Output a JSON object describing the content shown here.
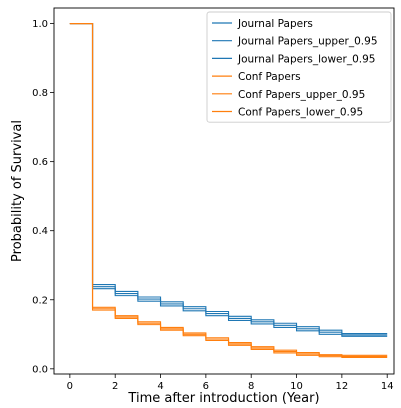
{
  "chart_data": {
    "type": "line",
    "step": "post",
    "xlabel": "Time after introduction (Year)",
    "ylabel": "Probability of Survival",
    "xlim": [
      -0.7,
      14.3
    ],
    "ylim": [
      -0.015,
      1.045
    ],
    "xticks": [
      0,
      2,
      4,
      6,
      8,
      10,
      12,
      14
    ],
    "yticks": [
      0.0,
      0.2,
      0.4,
      0.6,
      0.8,
      1.0
    ],
    "xtick_labels": [
      "0",
      "2",
      "4",
      "6",
      "8",
      "10",
      "12",
      "14"
    ],
    "ytick_labels": [
      "0.0",
      "0.2",
      "0.4",
      "0.6",
      "0.8",
      "1.0"
    ],
    "grid": false,
    "legend_position": "top-right",
    "x": [
      0,
      1,
      2,
      3,
      4,
      5,
      6,
      7,
      8,
      9,
      10,
      11,
      12,
      14
    ],
    "series": [
      {
        "name": "Journal Papers",
        "color": "#1f77b4",
        "values": [
          1.0,
          0.238,
          0.218,
          0.202,
          0.188,
          0.174,
          0.16,
          0.146,
          0.136,
          0.126,
          0.116,
          0.106,
          0.098,
          0.098
        ]
      },
      {
        "name": "Journal Papers_upper_0.95",
        "color": "#1f77b4",
        "values": [
          1.0,
          0.244,
          0.224,
          0.208,
          0.194,
          0.18,
          0.166,
          0.152,
          0.142,
          0.132,
          0.122,
          0.112,
          0.102,
          0.102
        ]
      },
      {
        "name": "Journal Papers_lower_0.95",
        "color": "#1f77b4",
        "values": [
          1.0,
          0.232,
          0.212,
          0.196,
          0.182,
          0.168,
          0.154,
          0.14,
          0.13,
          0.12,
          0.11,
          0.1,
          0.094,
          0.094
        ]
      },
      {
        "name": "Conf Papers",
        "color": "#ff7f0e",
        "values": [
          1.0,
          0.174,
          0.15,
          0.132,
          0.116,
          0.1,
          0.086,
          0.072,
          0.06,
          0.05,
          0.043,
          0.038,
          0.036,
          0.036
        ]
      },
      {
        "name": "Conf Papers_upper_0.95",
        "color": "#ff7f0e",
        "values": [
          1.0,
          0.178,
          0.154,
          0.136,
          0.12,
          0.104,
          0.09,
          0.076,
          0.064,
          0.054,
          0.047,
          0.041,
          0.039,
          0.039
        ]
      },
      {
        "name": "Conf Papers_lower_0.95",
        "color": "#ff7f0e",
        "values": [
          1.0,
          0.17,
          0.146,
          0.128,
          0.112,
          0.096,
          0.082,
          0.068,
          0.056,
          0.046,
          0.039,
          0.035,
          0.033,
          0.033
        ]
      }
    ]
  }
}
